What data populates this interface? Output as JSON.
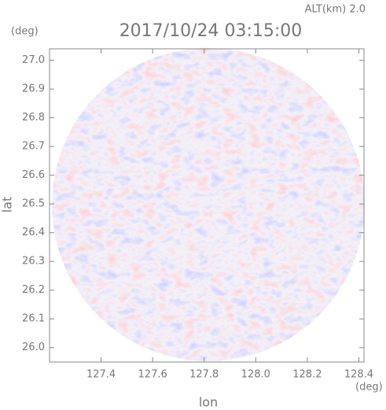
{
  "chart_data": {
    "type": "image",
    "title": "2017/10/24 03:15:00",
    "annotation": "ALT(km) 2.0",
    "y_unit": "(deg)",
    "x_unit": "(deg)",
    "xlabel": "lon",
    "ylabel": "lat",
    "xlim": [
      127.2,
      128.42
    ],
    "ylim": [
      25.95,
      27.04
    ],
    "xticks": [
      127.4,
      127.6,
      127.8,
      {
        "value": 128,
        "label": "128.0"
      },
      128.2,
      128.4
    ],
    "yticks": [
      {
        "value": 26,
        "label": "26.0"
      },
      26.1,
      26.2,
      26.3,
      26.4,
      26.5,
      26.6,
      26.7,
      26.8,
      26.9,
      {
        "value": 27,
        "label": "27.0"
      }
    ]
  }
}
